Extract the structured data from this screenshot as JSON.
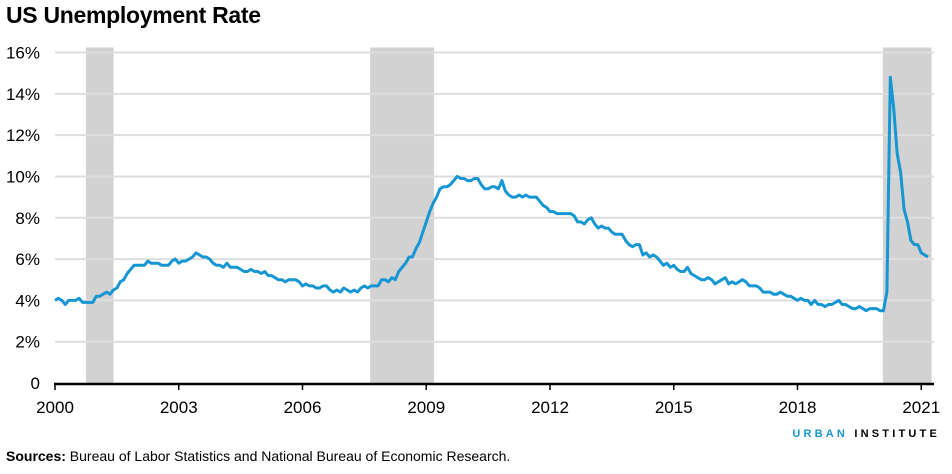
{
  "title": "US Unemployment Rate",
  "source_label": "Sources:",
  "source_text": " Bureau of Labor Statistics and National Bureau of Economic Research.",
  "logo": {
    "part1": "URBAN",
    "part2": "INSTITUTE"
  },
  "colors": {
    "line": "#1696d2",
    "recession": "#d2d2d2",
    "grid": "#dedede",
    "logo_accent": "#1696d2"
  },
  "chart_data": {
    "type": "line",
    "title": "US Unemployment Rate",
    "ylim": [
      0,
      16
    ],
    "xlim": [
      2000,
      2021.25
    ],
    "y_ticks": [
      {
        "v": 0,
        "label": "0"
      },
      {
        "v": 2,
        "label": "2%"
      },
      {
        "v": 4,
        "label": "4%"
      },
      {
        "v": 6,
        "label": "6%"
      },
      {
        "v": 8,
        "label": "8%"
      },
      {
        "v": 10,
        "label": "10%"
      },
      {
        "v": 12,
        "label": "12%"
      },
      {
        "v": 14,
        "label": "14%"
      },
      {
        "v": 16,
        "label": "16%"
      }
    ],
    "x_ticks": [
      "2000",
      "2003",
      "2006",
      "2009",
      "2012",
      "2015",
      "2018",
      "2021"
    ],
    "grid": true,
    "recession_shading": [
      [
        2000.75,
        2001.42
      ],
      [
        2007.64,
        2009.19
      ],
      [
        2020.07,
        2021.25
      ]
    ],
    "frequency": "monthly",
    "start": "2000-01",
    "values": [
      4.0,
      4.1,
      4.0,
      3.8,
      4.0,
      4.0,
      4.0,
      4.1,
      3.9,
      3.9,
      3.9,
      3.9,
      4.2,
      4.2,
      4.3,
      4.4,
      4.3,
      4.5,
      4.6,
      4.9,
      5.0,
      5.3,
      5.5,
      5.7,
      5.7,
      5.7,
      5.7,
      5.9,
      5.8,
      5.8,
      5.8,
      5.7,
      5.7,
      5.7,
      5.9,
      6.0,
      5.8,
      5.9,
      5.9,
      6.0,
      6.1,
      6.3,
      6.2,
      6.1,
      6.1,
      6.0,
      5.8,
      5.7,
      5.7,
      5.6,
      5.8,
      5.6,
      5.6,
      5.6,
      5.5,
      5.4,
      5.4,
      5.5,
      5.4,
      5.4,
      5.3,
      5.4,
      5.2,
      5.2,
      5.1,
      5.0,
      5.0,
      4.9,
      5.0,
      5.0,
      5.0,
      4.9,
      4.7,
      4.8,
      4.7,
      4.7,
      4.6,
      4.6,
      4.7,
      4.7,
      4.5,
      4.4,
      4.5,
      4.4,
      4.6,
      4.5,
      4.4,
      4.5,
      4.4,
      4.6,
      4.7,
      4.6,
      4.7,
      4.7,
      4.7,
      5.0,
      5.0,
      4.9,
      5.1,
      5.0,
      5.4,
      5.6,
      5.8,
      6.1,
      6.1,
      6.5,
      6.8,
      7.3,
      7.8,
      8.3,
      8.7,
      9.0,
      9.4,
      9.5,
      9.5,
      9.6,
      9.8,
      10.0,
      9.9,
      9.9,
      9.8,
      9.8,
      9.9,
      9.9,
      9.6,
      9.4,
      9.4,
      9.5,
      9.5,
      9.4,
      9.8,
      9.3,
      9.1,
      9.0,
      9.0,
      9.1,
      9.0,
      9.1,
      9.0,
      9.0,
      9.0,
      8.8,
      8.6,
      8.5,
      8.3,
      8.3,
      8.2,
      8.2,
      8.2,
      8.2,
      8.2,
      8.1,
      7.8,
      7.8,
      7.7,
      7.9,
      8.0,
      7.7,
      7.5,
      7.6,
      7.5,
      7.5,
      7.3,
      7.2,
      7.2,
      7.2,
      6.9,
      6.7,
      6.6,
      6.7,
      6.7,
      6.2,
      6.3,
      6.1,
      6.2,
      6.1,
      5.9,
      5.7,
      5.8,
      5.6,
      5.7,
      5.5,
      5.4,
      5.4,
      5.6,
      5.3,
      5.2,
      5.1,
      5.0,
      5.0,
      5.1,
      5.0,
      4.8,
      4.9,
      5.0,
      5.1,
      4.8,
      4.9,
      4.8,
      4.9,
      5.0,
      4.9,
      4.7,
      4.7,
      4.7,
      4.6,
      4.4,
      4.4,
      4.4,
      4.3,
      4.3,
      4.4,
      4.3,
      4.2,
      4.2,
      4.1,
      4.0,
      4.1,
      4.0,
      4.0,
      3.8,
      4.0,
      3.8,
      3.8,
      3.7,
      3.8,
      3.8,
      3.9,
      4.0,
      3.8,
      3.8,
      3.7,
      3.6,
      3.6,
      3.7,
      3.6,
      3.5,
      3.6,
      3.6,
      3.6,
      3.5,
      3.5,
      4.4,
      14.8,
      13.3,
      11.1,
      10.2,
      8.4,
      7.8,
      6.9,
      6.7,
      6.7,
      6.3,
      6.2,
      6.1
    ]
  }
}
